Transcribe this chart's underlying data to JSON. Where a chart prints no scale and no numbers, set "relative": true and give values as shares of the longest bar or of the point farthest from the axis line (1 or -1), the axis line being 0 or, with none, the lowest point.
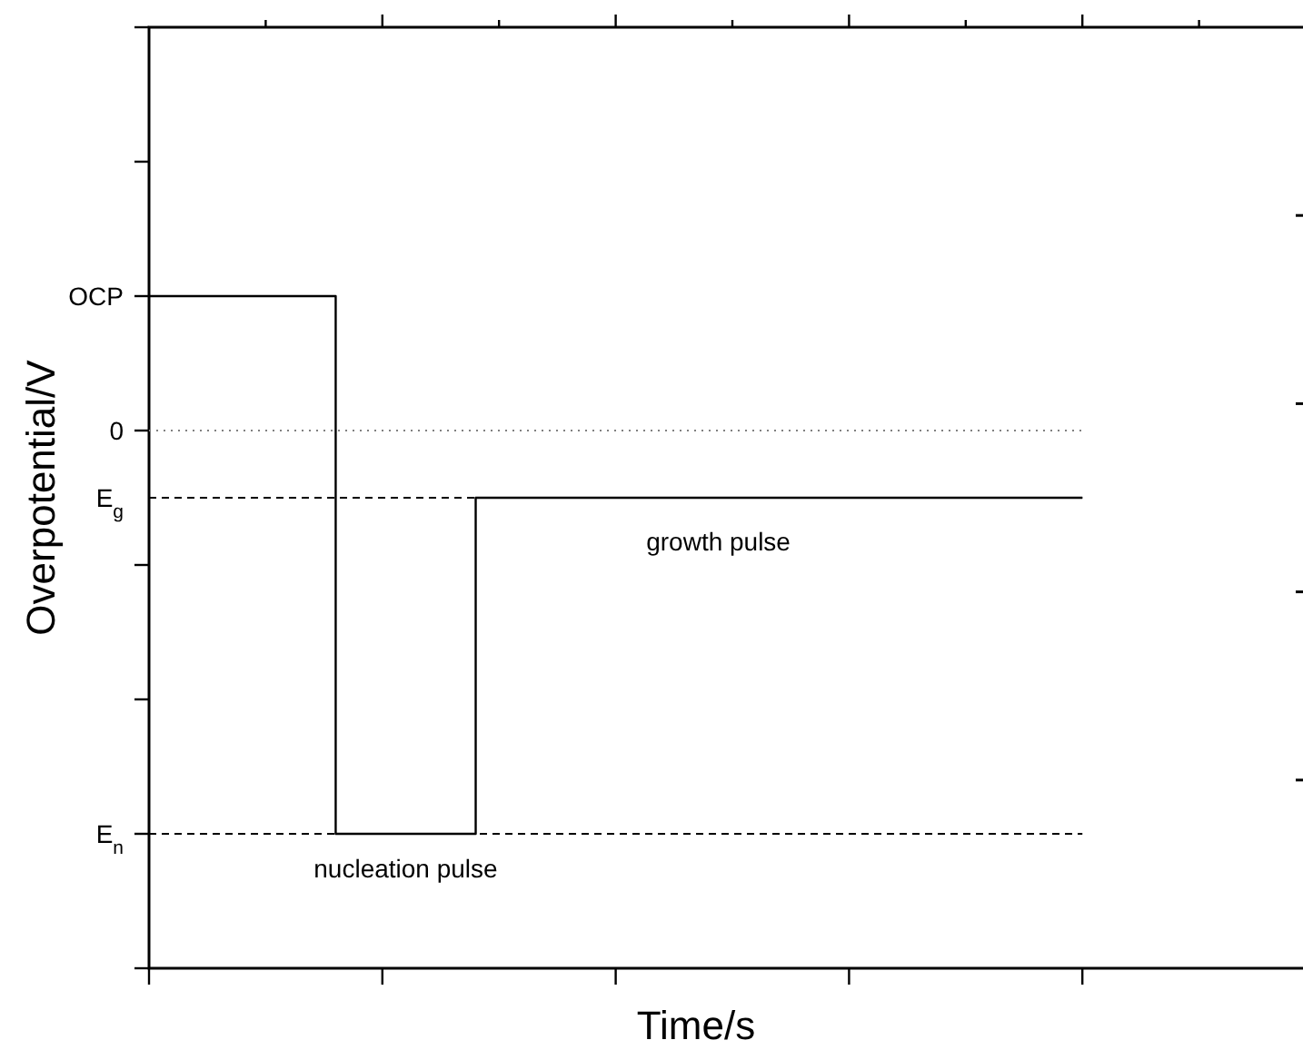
{
  "chart_data": {
    "type": "step",
    "xlabel": "Time/s",
    "ylabel": "Overpotential/V",
    "relative": true,
    "categories": [
      null,
      null,
      null,
      null,
      null,
      null,
      null,
      null,
      null,
      null,
      null,
      null,
      null,
      null,
      null,
      null,
      null,
      null,
      null,
      null,
      null,
      null,
      null,
      null,
      null,
      null,
      null,
      null,
      null,
      null,
      null,
      null,
      null,
      null,
      null,
      null,
      null,
      null,
      null,
      null,
      null
    ],
    "series": [
      {
        "color": "#000000",
        "values": [
          1,
          1,
          1,
          1,
          1,
          1,
          1,
          1,
          0.2,
          0.2,
          0.2,
          0.2,
          0.2,
          0.2,
          0.7,
          0.7,
          0.7,
          0.7,
          0.7,
          0.7,
          0.7,
          0.7,
          0.7,
          0.7,
          0.7,
          0.7,
          0.7,
          0.7,
          0.7,
          0.7,
          0.7,
          0.7,
          0.7,
          0.7,
          0.7,
          0.7,
          0.7,
          0.7,
          0.7,
          0.7,
          0.7
        ]
      }
    ],
    "ref_lines": [
      {
        "axis": "y",
        "value": 0.8,
        "color": "#808080",
        "line_style": "dotted"
      },
      {
        "axis": "y",
        "value": 0.7,
        "label": "E$_{g}$",
        "color": "#000000",
        "line_style": "dashed"
      },
      {
        "axis": "y",
        "value": 0.2,
        "label": "E$_{n}$",
        "color": "#000000",
        "line_style": "dashed"
      }
    ],
    "annotations": [
      "OCP",
      "0",
      "nucleation pulse",
      "growth pulse"
    ]
  }
}
